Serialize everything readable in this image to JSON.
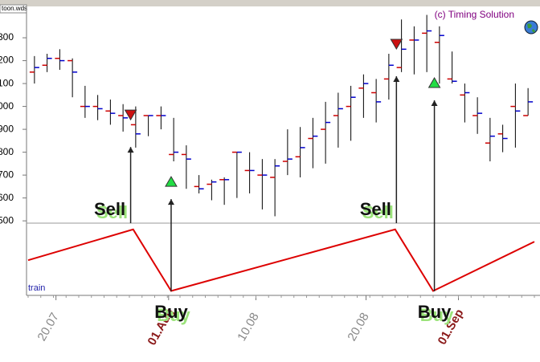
{
  "window_title": "toon.wds",
  "chart_data": {
    "type": "ohlc",
    "copyright": "(c) Timing Solution",
    "ylim": [
      490,
      1437
    ],
    "yticks": [
      {
        "value": 1300,
        "label": "300"
      },
      {
        "value": 1200,
        "label": "200"
      },
      {
        "value": 1100,
        "label": "100"
      },
      {
        "value": 1000,
        "label": "000"
      },
      900,
      800,
      700,
      600,
      500
    ],
    "xlim": [
      0,
      40
    ],
    "xticks": [
      {
        "value": 2.2,
        "label": "20.07"
      },
      {
        "value": 18,
        "label": "10.08"
      },
      {
        "value": 26.7,
        "label": "20.08"
      }
    ],
    "month_ticks": [
      {
        "value": 11.1,
        "label": "01.Aug"
      },
      {
        "value": 34,
        "label": "01.Sep"
      }
    ],
    "month_color": "#8b1a1a",
    "open_color": "#cc0000",
    "close_color": "#0000cc",
    "open": [
      1150,
      1180,
      1210,
      1200,
      1000,
      1000,
      980,
      960,
      920,
      960,
      960,
      790,
      790,
      650,
      660,
      680,
      800,
      720,
      700,
      690,
      760,
      780,
      860,
      900,
      960,
      1000,
      1080,
      1060,
      1120,
      1170,
      1290,
      1320,
      1280,
      1120,
      1050,
      960,
      840,
      880,
      1000,
      960
    ],
    "high": [
      1220,
      1230,
      1250,
      1210,
      1090,
      1050,
      1030,
      1010,
      1000,
      960,
      1000,
      950,
      830,
      700,
      680,
      690,
      800,
      800,
      770,
      770,
      900,
      910,
      950,
      1020,
      1060,
      1090,
      1140,
      1120,
      1230,
      1380,
      1350,
      1400,
      1350,
      1240,
      1100,
      1040,
      950,
      920,
      1100,
      1080
    ],
    "low": [
      1100,
      1150,
      1160,
      1040,
      950,
      940,
      920,
      890,
      820,
      870,
      900,
      760,
      640,
      620,
      590,
      570,
      600,
      620,
      550,
      520,
      700,
      690,
      730,
      750,
      820,
      850,
      950,
      930,
      1030,
      1150,
      1140,
      1150,
      1100,
      1100,
      930,
      880,
      760,
      800,
      820,
      960
    ],
    "close": [
      1170,
      1210,
      1200,
      1150,
      1000,
      990,
      970,
      950,
      880,
      960,
      960,
      800,
      770,
      640,
      670,
      680,
      800,
      720,
      700,
      740,
      770,
      820,
      870,
      930,
      990,
      1040,
      1100,
      1020,
      1180,
      1250,
      1290,
      1330,
      1310,
      1110,
      1060,
      970,
      870,
      860,
      980,
      1020
    ],
    "signals": [
      {
        "label": "Sell",
        "bar": 8.1,
        "price": 963
      },
      {
        "label": "Buy",
        "bar": 11.3,
        "price": 672
      },
      {
        "label": "Sell",
        "bar": 29.1,
        "price": 1272
      },
      {
        "label": "Buy",
        "bar": 32.1,
        "price": 1104
      }
    ],
    "indicator": {
      "name": "train",
      "color": "#dd0000",
      "x": [
        0,
        8.3,
        11.3,
        29,
        32,
        40
      ],
      "values": [
        0.5,
        1,
        0,
        1,
        0,
        0.8
      ],
      "ylim": [
        -0.02,
        1.05
      ]
    }
  }
}
